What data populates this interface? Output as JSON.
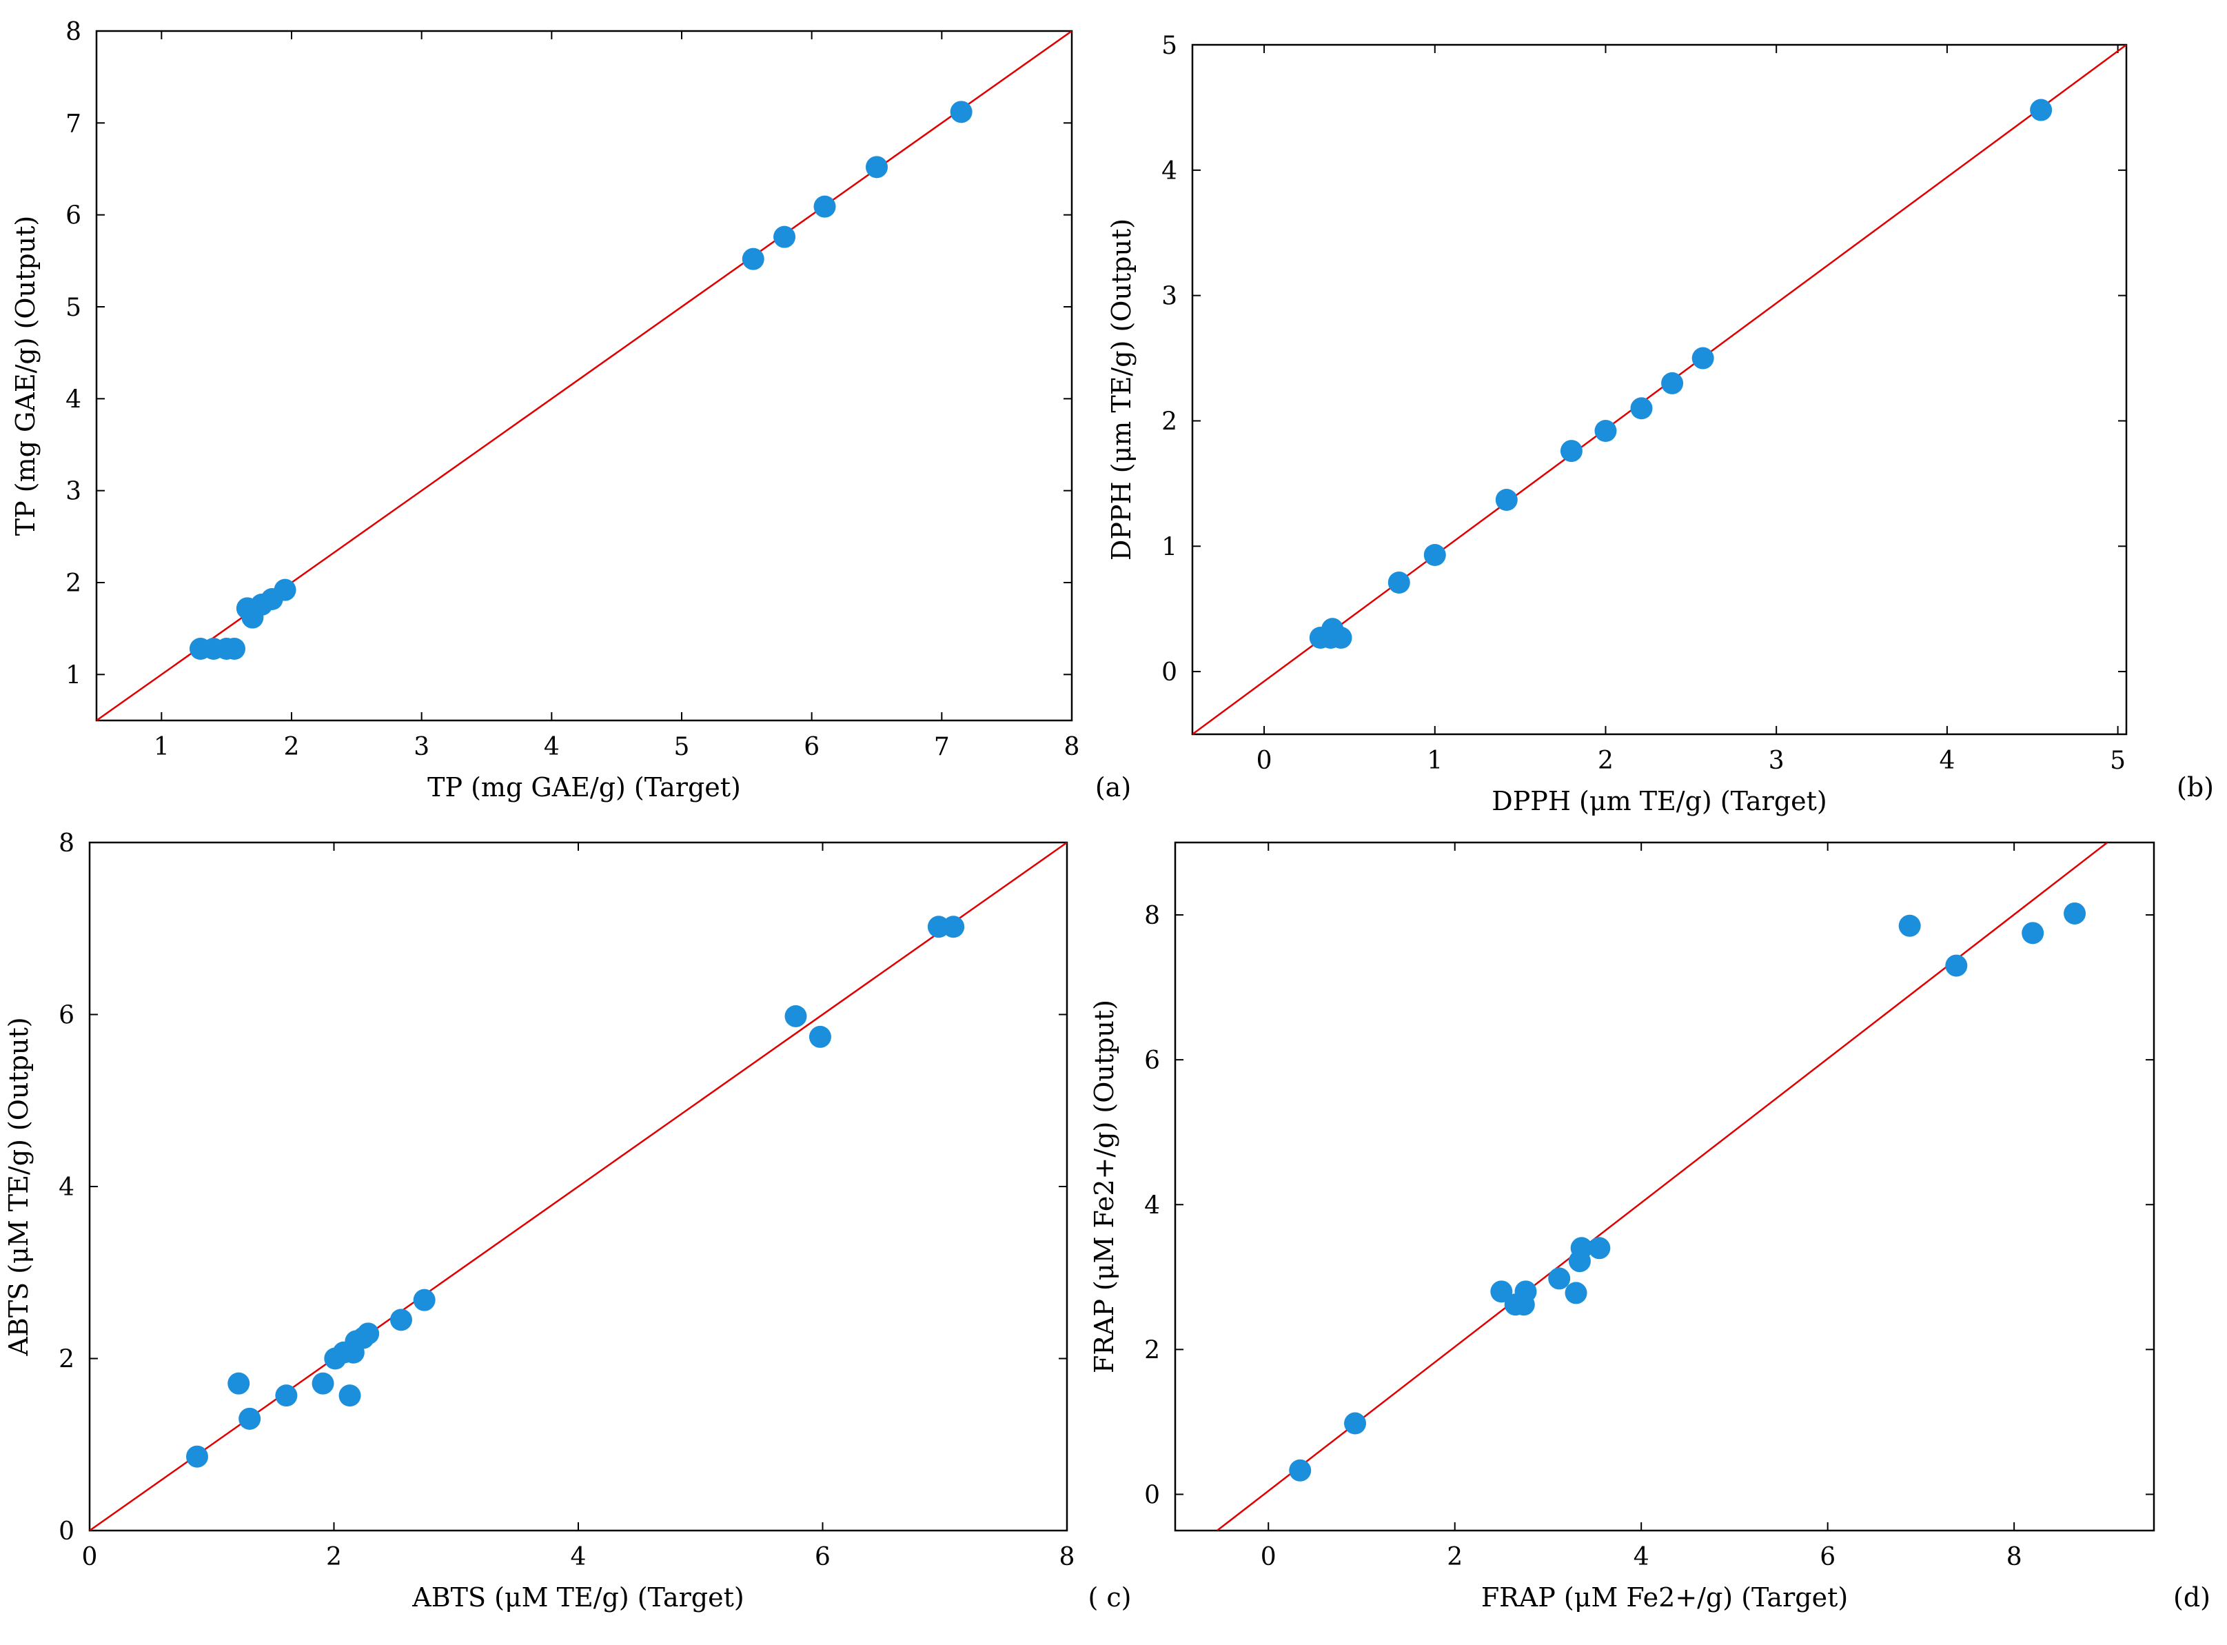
{
  "colors": {
    "point": "#1b8fdc",
    "fit_line": "#e00000",
    "frame": "#000000"
  },
  "chart_data": [
    {
      "type": "scatter",
      "panel_label": "(a)",
      "xlabel": "TP (mg GAE/g) (Target)",
      "ylabel": "TP (mg GAE/g) (Output)",
      "xlim": [
        0.5,
        8
      ],
      "ylim": [
        0.5,
        8
      ],
      "xticks": [
        1,
        2,
        3,
        4,
        5,
        6,
        7,
        8
      ],
      "yticks": [
        1,
        2,
        3,
        4,
        5,
        6,
        7,
        8
      ],
      "xtick_labels": [
        "1",
        "2",
        "3",
        "4",
        "5",
        "6",
        "7",
        "8"
      ],
      "ytick_labels": [
        "1",
        "2",
        "3",
        "4",
        "5",
        "6",
        "7",
        "8"
      ],
      "fit_line": {
        "x": [
          0.5,
          8
        ],
        "y": [
          0.5,
          8
        ]
      },
      "points": [
        [
          1.3,
          1.28
        ],
        [
          1.4,
          1.28
        ],
        [
          1.5,
          1.28
        ],
        [
          1.56,
          1.28
        ],
        [
          1.66,
          1.72
        ],
        [
          1.7,
          1.62
        ],
        [
          1.77,
          1.76
        ],
        [
          1.85,
          1.82
        ],
        [
          1.95,
          1.92
        ],
        [
          5.55,
          5.52
        ],
        [
          5.79,
          5.76
        ],
        [
          6.1,
          6.09
        ],
        [
          6.5,
          6.52
        ],
        [
          7.15,
          7.12
        ]
      ]
    },
    {
      "type": "scatter",
      "panel_label": "(b)",
      "xlabel": "DPPH (μm TE/g) (Target)",
      "ylabel": "DPPH (μm TE/g) (Output)",
      "xlim": [
        -0.42,
        5.05
      ],
      "ylim": [
        -0.5,
        5
      ],
      "xticks": [
        0,
        1,
        2,
        3,
        4,
        5
      ],
      "yticks": [
        0,
        1,
        2,
        3,
        4,
        5
      ],
      "xtick_labels": [
        "0",
        "1",
        "2",
        "3",
        "4",
        "5"
      ],
      "ytick_labels": [
        "0",
        "1",
        "2",
        "3",
        "4",
        "5"
      ],
      "fit_line": {
        "x": [
          -0.42,
          5.05
        ],
        "y": [
          -0.5,
          5
        ]
      },
      "points": [
        [
          0.33,
          0.27
        ],
        [
          0.39,
          0.27
        ],
        [
          0.4,
          0.34
        ],
        [
          0.45,
          0.27
        ],
        [
          0.79,
          0.71
        ],
        [
          1.0,
          0.93
        ],
        [
          1.42,
          1.37
        ],
        [
          1.8,
          1.76
        ],
        [
          2.0,
          1.92
        ],
        [
          2.21,
          2.1
        ],
        [
          2.39,
          2.3
        ],
        [
          2.57,
          2.5
        ],
        [
          4.55,
          4.48
        ]
      ]
    },
    {
      "type": "scatter",
      "panel_label": "( c)",
      "xlabel": "ABTS (μM TE/g) (Target)",
      "ylabel": "ABTS (μM TE/g) (Output)",
      "xlim": [
        0,
        8
      ],
      "ylim": [
        0,
        8
      ],
      "xticks": [
        0,
        2,
        4,
        6,
        8
      ],
      "yticks": [
        0,
        2,
        4,
        6,
        8
      ],
      "xtick_labels": [
        "0",
        "2",
        "4",
        "6",
        "8"
      ],
      "ytick_labels": [
        "0",
        "2",
        "4",
        "6",
        "8"
      ],
      "fit_line": {
        "x": [
          0,
          8
        ],
        "y": [
          0,
          8
        ]
      },
      "points": [
        [
          0.88,
          0.86
        ],
        [
          1.22,
          1.71
        ],
        [
          1.31,
          1.3
        ],
        [
          1.61,
          1.57
        ],
        [
          1.91,
          1.71
        ],
        [
          2.01,
          2.0
        ],
        [
          2.08,
          2.07
        ],
        [
          2.13,
          1.57
        ],
        [
          2.16,
          2.07
        ],
        [
          2.18,
          2.2
        ],
        [
          2.24,
          2.24
        ],
        [
          2.28,
          2.29
        ],
        [
          2.55,
          2.45
        ],
        [
          2.74,
          2.68
        ],
        [
          5.78,
          5.98
        ],
        [
          5.98,
          5.74
        ],
        [
          6.95,
          7.02
        ],
        [
          7.07,
          7.02
        ]
      ]
    },
    {
      "type": "scatter",
      "panel_label": "(d)",
      "xlabel": "FRAP (μM Fe2+/g) (Target)",
      "ylabel": "FRAP (μM Fe2+/g) (Output)",
      "xlim": [
        -1,
        9.5
      ],
      "ylim": [
        -0.5,
        9
      ],
      "xticks": [
        0,
        2,
        4,
        6,
        8
      ],
      "yticks": [
        0,
        2,
        4,
        6,
        8
      ],
      "xtick_labels": [
        "0",
        "2",
        "4",
        "6",
        "8"
      ],
      "ytick_labels": [
        "0",
        "2",
        "4",
        "6",
        "8"
      ],
      "fit_line": {
        "x": [
          -0.55,
          9.0
        ],
        "y": [
          -0.5,
          9.0
        ]
      },
      "points": [
        [
          0.34,
          0.33
        ],
        [
          0.93,
          0.98
        ],
        [
          2.5,
          2.8
        ],
        [
          2.65,
          2.62
        ],
        [
          2.74,
          2.62
        ],
        [
          2.76,
          2.8
        ],
        [
          3.12,
          2.98
        ],
        [
          3.3,
          2.78
        ],
        [
          3.34,
          3.22
        ],
        [
          3.36,
          3.4
        ],
        [
          3.55,
          3.4
        ],
        [
          6.88,
          7.85
        ],
        [
          7.38,
          7.3
        ],
        [
          8.2,
          7.75
        ],
        [
          8.65,
          8.02
        ]
      ]
    }
  ]
}
